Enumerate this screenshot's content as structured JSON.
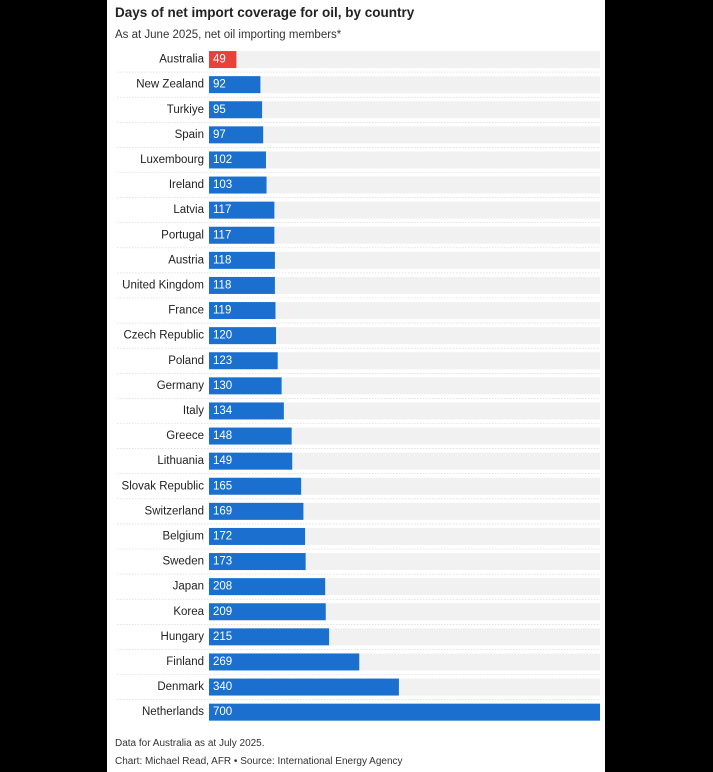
{
  "chart_data": {
    "type": "bar",
    "orientation": "horizontal",
    "title": "Days of net import coverage for oil, by country",
    "subtitle": "As at June 2025, net oil importing members*",
    "categories": [
      "Australia",
      "New Zealand",
      "Turkiye",
      "Spain",
      "Luxembourg",
      "Ireland",
      "Latvia",
      "Portugal",
      "Austria",
      "United Kingdom",
      "France",
      "Czech Republic",
      "Poland",
      "Germany",
      "Italy",
      "Greece",
      "Lithuania",
      "Slovak Republic",
      "Switzerland",
      "Belgium",
      "Sweden",
      "Japan",
      "Korea",
      "Hungary",
      "Finland",
      "Denmark",
      "Netherlands"
    ],
    "values": [
      49,
      92,
      95,
      97,
      102,
      103,
      117,
      117,
      118,
      118,
      119,
      120,
      123,
      130,
      134,
      148,
      149,
      165,
      169,
      172,
      173,
      208,
      209,
      215,
      269,
      340,
      700
    ],
    "highlight_index": 0,
    "xlim": [
      0,
      700
    ],
    "grid": false,
    "colors": {
      "bar": "#1a6fcf",
      "highlight": "#e8413a",
      "track": "#f1f1f1",
      "divider": "#d0d0d0"
    }
  },
  "footer": {
    "note": "Data for Australia as at July 2025.",
    "credit": "Chart: Michael Read, AFR • Source: International Energy Agency"
  }
}
